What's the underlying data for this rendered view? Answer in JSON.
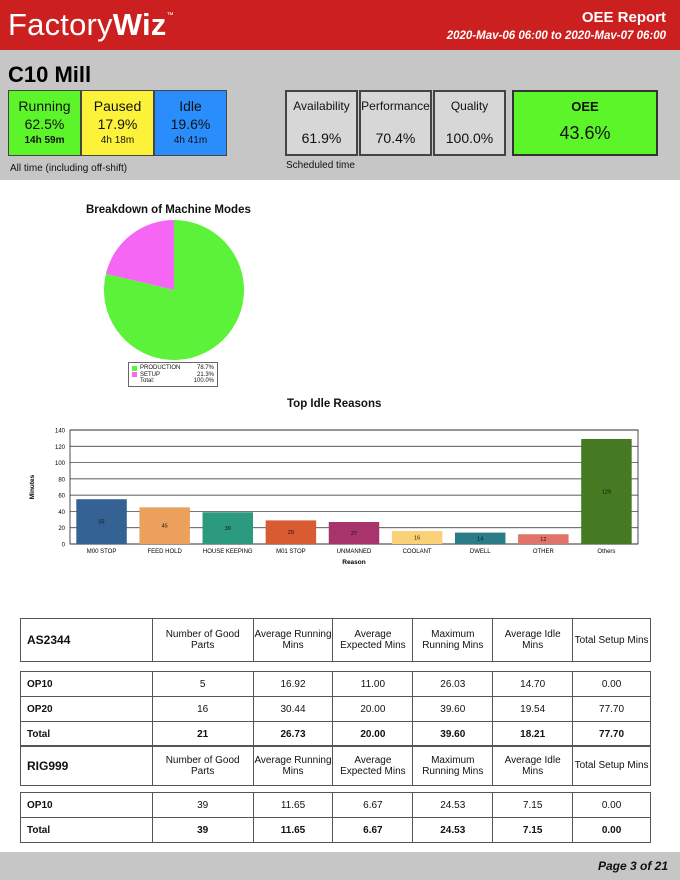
{
  "header": {
    "logo_light": "Factory",
    "logo_bold": "Wiz",
    "logo_tm": "™",
    "report_title": "OEE Report",
    "date_range": "2020-Mav-06 06:00 to 2020-Mav-07 06:00"
  },
  "machine": {
    "name": "C10 Mill"
  },
  "modes": [
    {
      "label": "Running",
      "percent": "62.5%",
      "duration": "14h 59m",
      "color": "#5cf52a"
    },
    {
      "label": "Paused",
      "percent": "17.9%",
      "duration": "4h 18m",
      "color": "#fdf23a"
    },
    {
      "label": "Idle",
      "percent": "19.6%",
      "duration": "4h 41m",
      "color": "#2a8dfc"
    }
  ],
  "modes_note": "All time (including off-shift)",
  "metrics": [
    {
      "label": "Availability",
      "value": "61.9%"
    },
    {
      "label": "Performance",
      "value": "70.4%"
    },
    {
      "label": "Quality",
      "value": "100.0%"
    }
  ],
  "metrics_note": "Scheduled time",
  "oee": {
    "label": "OEE",
    "value": "43.6%"
  },
  "pie": {
    "title": "Breakdown of Machine Modes",
    "total_label": "Total:",
    "total_value": "100.0%"
  },
  "bars": {
    "title": "Top Idle Reasons"
  },
  "chart_data": [
    {
      "type": "pie",
      "title": "Breakdown of Machine Modes",
      "slices": [
        {
          "name": "PRODUCTION",
          "value": 78.7,
          "label": "78.7%",
          "color": "#5cf23a"
        },
        {
          "name": "SETUP",
          "value": 21.3,
          "label": "21.3%",
          "color": "#f566f5"
        }
      ],
      "legend": "bottom"
    },
    {
      "type": "bar",
      "title": "Top Idle Reasons",
      "xlabel": "Reason",
      "ylabel": "Minutes",
      "categories": [
        "M00 STOP",
        "FEED HOLD",
        "HOUSE KEEPING",
        "M01 STOP",
        "UNMANNED",
        "COOLANT",
        "DWELL",
        "OTHER",
        "Others"
      ],
      "values": [
        55,
        45,
        39,
        29,
        27,
        16,
        14,
        12,
        129
      ],
      "colors": [
        "#356295",
        "#eba05d",
        "#2b9a7e",
        "#d95b31",
        "#a7346b",
        "#fbd178",
        "#2c7c88",
        "#e0746a",
        "#457a22"
      ],
      "ylim": [
        0,
        140
      ],
      "yticks": [
        0,
        20,
        40,
        60,
        80,
        100,
        120,
        140
      ],
      "grid": true
    }
  ],
  "table_headers": [
    "Number of Good Parts",
    "Average Running Mins",
    "Average Expected Mins",
    "Maximum Running Mins",
    "Average Idle Mins",
    "Total Setup Mins"
  ],
  "groups": [
    {
      "name": "AS2344",
      "rows": [
        {
          "label": "OP10",
          "cells": [
            "5",
            "16.92",
            "11.00",
            "26.03",
            "14.70",
            "0.00"
          ]
        },
        {
          "label": "OP20",
          "cells": [
            "16",
            "30.44",
            "20.00",
            "39.60",
            "19.54",
            "77.70"
          ]
        }
      ],
      "total": {
        "label": "Total",
        "cells": [
          "21",
          "26.73",
          "20.00",
          "39.60",
          "18.21",
          "77.70"
        ]
      }
    },
    {
      "name": "RIG999",
      "rows": [
        {
          "label": "OP10",
          "cells": [
            "39",
            "11.65",
            "6.67",
            "24.53",
            "7.15",
            "0.00"
          ]
        }
      ],
      "total": {
        "label": "Total",
        "cells": [
          "39",
          "11.65",
          "6.67",
          "24.53",
          "7.15",
          "0.00"
        ]
      }
    }
  ],
  "footer": {
    "page": "Page 3 of 21"
  }
}
